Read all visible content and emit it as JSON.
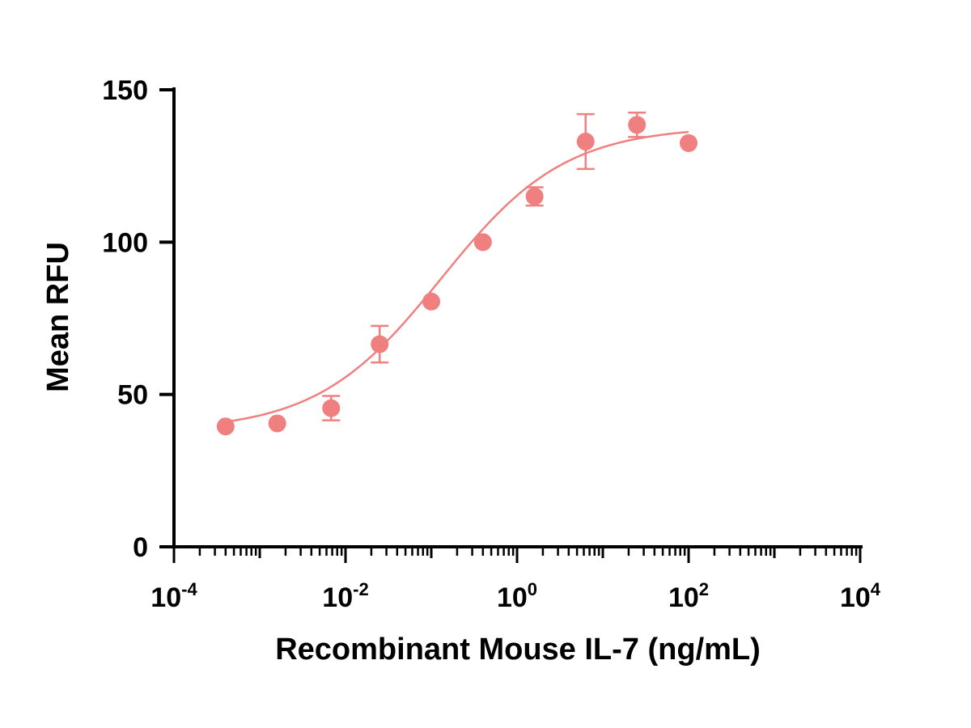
{
  "chart_data": {
    "type": "scatter",
    "xlabel": "Recombinant Mouse IL-7 (ng/mL)",
    "ylabel": "Mean RFU",
    "x_scale": "log",
    "xlim": [
      0.0001,
      10000
    ],
    "ylim": [
      0,
      150
    ],
    "x_ticks": [
      {
        "base": "10",
        "exp": "-4"
      },
      {
        "base": "10",
        "exp": "-2"
      },
      {
        "base": "10",
        "exp": "0"
      },
      {
        "base": "10",
        "exp": "2"
      },
      {
        "base": "10",
        "exp": "4"
      }
    ],
    "y_ticks": [
      "0",
      "50",
      "100",
      "150"
    ],
    "grid": false,
    "color": "#f08080",
    "points": [
      {
        "x": 0.0004,
        "y": 39.5,
        "err": 0
      },
      {
        "x": 0.0016,
        "y": 40.5,
        "err": 0
      },
      {
        "x": 0.0068,
        "y": 45.5,
        "err": 4
      },
      {
        "x": 0.025,
        "y": 66.5,
        "err": 6
      },
      {
        "x": 0.1,
        "y": 80.5,
        "err": 0
      },
      {
        "x": 0.4,
        "y": 100,
        "err": 0
      },
      {
        "x": 1.6,
        "y": 115,
        "err": 3
      },
      {
        "x": 6.3,
        "y": 133,
        "err": 9
      },
      {
        "x": 25,
        "y": 138.5,
        "err": 4
      },
      {
        "x": 100,
        "y": 132.5,
        "err": 0
      }
    ],
    "fit_curve": {
      "model": "4PL",
      "bottom": 38,
      "top": 138,
      "ec50": 0.13,
      "hill": 0.6,
      "x_range": [
        0.0004,
        100
      ]
    }
  }
}
